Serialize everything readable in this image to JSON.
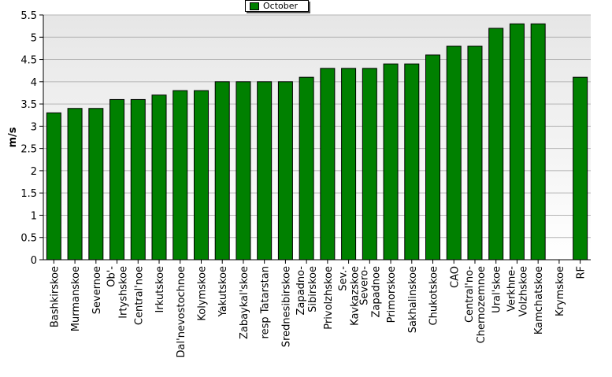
{
  "chart_data": {
    "type": "bar",
    "ylabel": "m/s",
    "xlabel": "",
    "ylim": [
      0,
      5.5
    ],
    "yticks": [
      "0",
      "0.5",
      "1",
      "1.5",
      "2",
      "2.5",
      "3",
      "3.5",
      "4",
      "4.5",
      "5",
      "5.5"
    ],
    "grid": true,
    "legend_position": "top-center",
    "bar_color": "#008000",
    "plot_background": "#ececec",
    "categories": [
      "Bashkirskoe",
      "Murmanskoe",
      "Severnoe",
      "Ob'-\nIrtyshskoe",
      "Central'noe",
      "Irkutskoe",
      "Dal'nevostochnoe",
      "Kolymskoe",
      "Yakutskoe",
      "Zabaykal'skoe",
      "resp Tatarstan",
      "Srednesibirskoe",
      "Zapadno-\nSibirskoe",
      "Privolzhskoe",
      "Sev.-\nKavkazskoe",
      "Severo-\nZapadnoe",
      "Primorskoe",
      "Sakhalinskoe",
      "Chukotskoe",
      "CAO",
      "Central'no-\nChernozemnoe",
      "Ural'skoe",
      "Verkhne-\nVolzhskoe",
      "Kamchatskoe",
      "Krymskoe",
      "RF"
    ],
    "series": [
      {
        "name": "October",
        "values": [
          3.3,
          3.4,
          3.4,
          3.6,
          3.6,
          3.7,
          3.8,
          3.8,
          4.0,
          4.0,
          4.0,
          4.0,
          4.1,
          4.3,
          4.3,
          4.3,
          4.4,
          4.4,
          4.6,
          4.8,
          4.8,
          5.2,
          5.3,
          5.3,
          null,
          4.1
        ]
      }
    ]
  }
}
